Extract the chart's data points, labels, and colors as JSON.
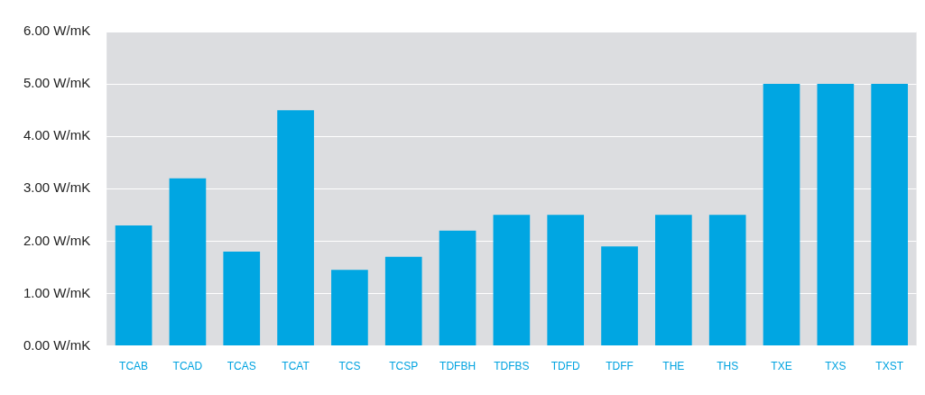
{
  "chart_data": {
    "type": "bar",
    "categories": [
      "TCAB",
      "TCAD",
      "TCAS",
      "TCAT",
      "TCS",
      "TCSP",
      "TDFBH",
      "TDFBS",
      "TDFD",
      "TDFF",
      "THE",
      "THS",
      "TXE",
      "TXS",
      "TXST"
    ],
    "values": [
      2.3,
      3.2,
      1.8,
      4.5,
      1.45,
      1.7,
      2.2,
      2.5,
      2.5,
      1.9,
      2.5,
      2.5,
      5.0,
      5.0,
      5.0
    ],
    "color": "#00a6e2",
    "ylim": [
      0,
      6
    ],
    "yticks": [
      {
        "value": 0,
        "label": "0.00 W/mK"
      },
      {
        "value": 1,
        "label": "1.00 W/mK"
      },
      {
        "value": 2,
        "label": "2.00 W/mK"
      },
      {
        "value": 3,
        "label": "3.00 W/mK"
      },
      {
        "value": 4,
        "label": "4.00 W/mK"
      },
      {
        "value": 5,
        "label": "5.00 W/mK"
      },
      {
        "value": 6,
        "label": "6.00 W/mK"
      }
    ],
    "grid": "y"
  }
}
